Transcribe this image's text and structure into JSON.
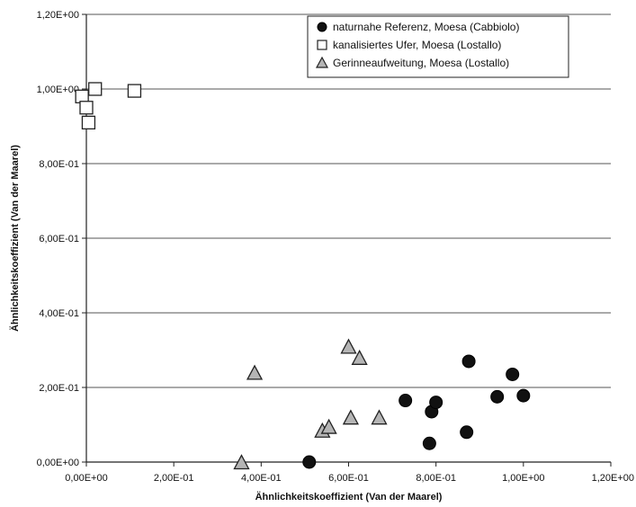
{
  "chart_data": {
    "type": "scatter",
    "xlabel": "Ähnlichkeitskoeffizient (Van der Maarel)",
    "ylabel": "Ähnlichkeitskoeffizient (Van der Maarel)",
    "xlim": [
      0,
      1.2
    ],
    "ylim": [
      0,
      1.2
    ],
    "x_ticks": [
      0,
      0.2,
      0.4,
      0.6,
      0.8,
      1.0,
      1.2
    ],
    "y_ticks": [
      0,
      0.2,
      0.4,
      0.6,
      0.8,
      1.0,
      1.2
    ],
    "x_tick_labels": [
      "0,00E+00",
      "2,00E-01",
      "4,00E-01",
      "6,00E-01",
      "8,00E-01",
      "1,00E+00",
      "1,20E+00"
    ],
    "y_tick_labels": [
      "0,00E+00",
      "2,00E-01",
      "4,00E-01",
      "6,00E-01",
      "8,00E-01",
      "1,00E+00",
      "1,20E+00"
    ],
    "grid": "horizontal",
    "legend_position": "top-right",
    "series": [
      {
        "name": "naturnahe Referenz, Moesa (Cabbiolo)",
        "marker": "circle",
        "color": "#111111",
        "points": [
          {
            "x": 0.51,
            "y": 0.0
          },
          {
            "x": 0.73,
            "y": 0.165
          },
          {
            "x": 0.79,
            "y": 0.135
          },
          {
            "x": 0.8,
            "y": 0.16
          },
          {
            "x": 0.785,
            "y": 0.05
          },
          {
            "x": 0.87,
            "y": 0.08
          },
          {
            "x": 0.875,
            "y": 0.27
          },
          {
            "x": 0.94,
            "y": 0.175
          },
          {
            "x": 0.975,
            "y": 0.235
          },
          {
            "x": 1.0,
            "y": 0.178
          }
        ]
      },
      {
        "name": "kanalisiertes Ufer, Moesa (Lostallo)",
        "marker": "square",
        "color": "#ffffff",
        "points": [
          {
            "x": -0.01,
            "y": 0.98
          },
          {
            "x": 0.0,
            "y": 0.95
          },
          {
            "x": 0.005,
            "y": 0.91
          },
          {
            "x": 0.02,
            "y": 1.0
          },
          {
            "x": 0.11,
            "y": 0.995
          }
        ]
      },
      {
        "name": "Gerinneaufweitung, Moesa (Lostallo)",
        "marker": "triangle",
        "color": "#b5b5b5",
        "points": [
          {
            "x": 0.355,
            "y": 0.0
          },
          {
            "x": 0.385,
            "y": 0.24
          },
          {
            "x": 0.54,
            "y": 0.085
          },
          {
            "x": 0.555,
            "y": 0.095
          },
          {
            "x": 0.6,
            "y": 0.31
          },
          {
            "x": 0.605,
            "y": 0.12
          },
          {
            "x": 0.625,
            "y": 0.28
          },
          {
            "x": 0.67,
            "y": 0.12
          }
        ]
      }
    ]
  }
}
